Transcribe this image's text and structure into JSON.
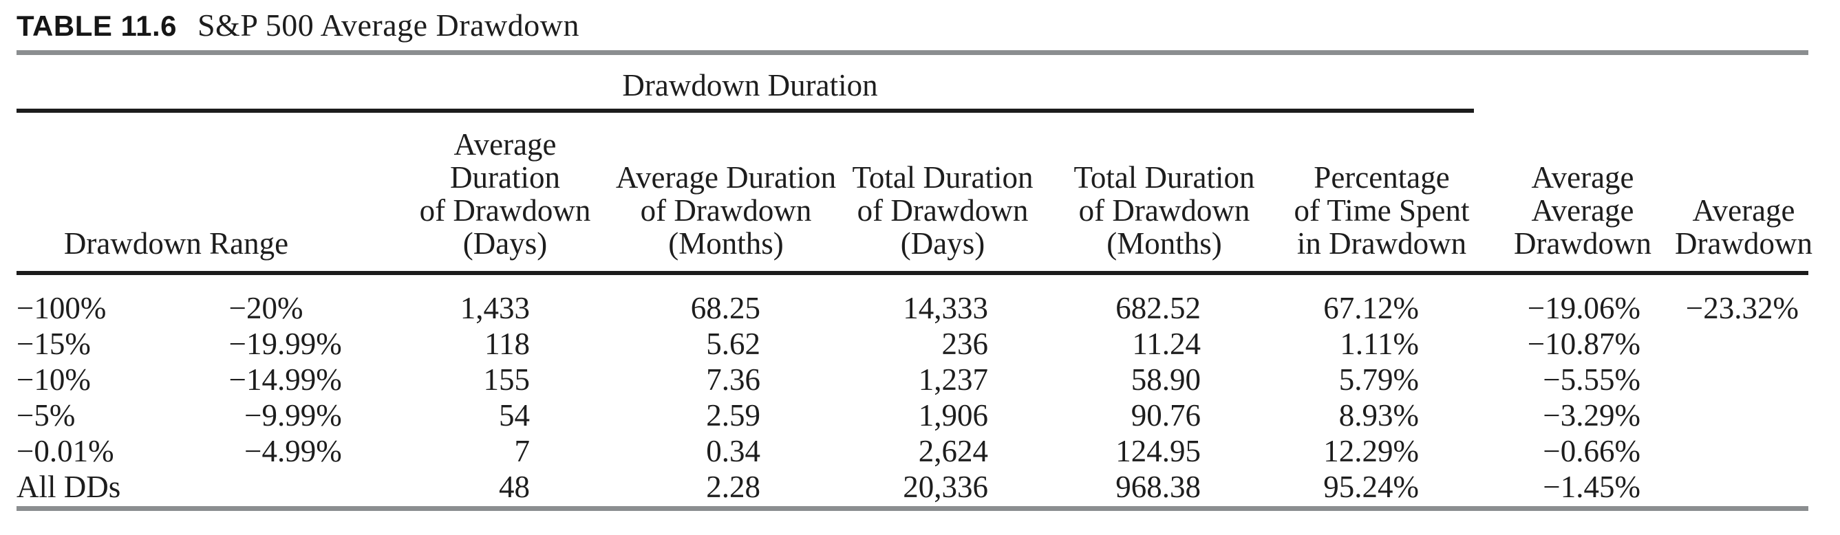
{
  "title": {
    "label": "TABLE 11.6",
    "text": "S&P 500 Average Drawdown"
  },
  "table": {
    "group_header": "Drawdown Duration",
    "headers": {
      "range": "Drawdown Range",
      "avg_dur_days": "Average\nDuration\nof Drawdown\n(Days)",
      "avg_dur_months": "Average Duration\nof Drawdown\n(Months)",
      "total_dur_days": "Total Duration\nof Drawdown\n(Days)",
      "total_dur_months": "Total Duration\nof Drawdown\n(Months)",
      "pct_time": "Percentage\nof Time Spent\nin Drawdown",
      "avg_avg_dd": "Average\nAverage\nDrawdown",
      "avg_dd": "Average\nDrawdown"
    },
    "rows": [
      {
        "from": "−100%",
        "to_int": "−20",
        "to_frac": "%",
        "avg_dur_days": "1,433",
        "avg_dur_months": "68.25",
        "total_dur_days": "14,333",
        "total_dur_months": "682.52",
        "pct_time": "67.12%",
        "avg_avg_dd": "−19.06%",
        "avg_dd": "−23.32%"
      },
      {
        "from": "−15%",
        "to_int": "−19",
        "to_frac": ".99%",
        "avg_dur_days": "118",
        "avg_dur_months": "5.62",
        "total_dur_days": "236",
        "total_dur_months": "11.24",
        "pct_time": "1.11%",
        "avg_avg_dd": "−10.87%",
        "avg_dd": ""
      },
      {
        "from": "−10%",
        "to_int": "−14",
        "to_frac": ".99%",
        "avg_dur_days": "155",
        "avg_dur_months": "7.36",
        "total_dur_days": "1,237",
        "total_dur_months": "58.90",
        "pct_time": "5.79%",
        "avg_avg_dd": "−5.55%",
        "avg_dd": ""
      },
      {
        "from": "−5%",
        "to_int": "−9",
        "to_frac": ".99%",
        "avg_dur_days": "54",
        "avg_dur_months": "2.59",
        "total_dur_days": "1,906",
        "total_dur_months": "90.76",
        "pct_time": "8.93%",
        "avg_avg_dd": "−3.29%",
        "avg_dd": ""
      },
      {
        "from": "−0.01%",
        "to_int": "−4",
        "to_frac": ".99%",
        "avg_dur_days": "7",
        "avg_dur_months": "0.34",
        "total_dur_days": "2,624",
        "total_dur_months": "124.95",
        "pct_time": "12.29%",
        "avg_avg_dd": "−0.66%",
        "avg_dd": ""
      },
      {
        "from": "All DDs",
        "to_int": "",
        "to_frac": "",
        "avg_dur_days": "48",
        "avg_dur_months": "2.28",
        "total_dur_days": "20,336",
        "total_dur_months": "968.38",
        "pct_time": "95.24%",
        "avg_avg_dd": "−1.45%",
        "avg_dd": ""
      }
    ],
    "colors": {
      "text": "#1d1d1d",
      "rule_black": "#1c1c1c",
      "rule_gray": "#8b8e90"
    }
  }
}
